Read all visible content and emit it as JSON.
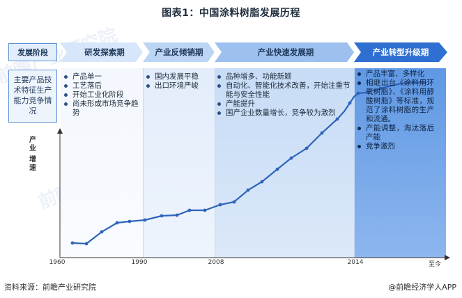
{
  "title": "图表1：中国涂料树脂发展历程",
  "row_labels": {
    "stage": "发展阶段",
    "features": "主要产品技术特征生产能力竞争情况"
  },
  "y_axis_label": [
    "产",
    "业",
    "增",
    "速"
  ],
  "stages": [
    {
      "name": "研发探索期",
      "features": [
        "产品单一",
        "工艺落后",
        "开始工业化阶段",
        "尚未形成市场竞争趋势"
      ]
    },
    {
      "name": "产业反倾销期",
      "features": [
        "国内发展平稳",
        "出口环境严峻"
      ]
    },
    {
      "name": "产业快速发展期",
      "features": [
        "品种增多、功能新颖",
        "自动化、智能化技术改善，开始注重节能与安全性能",
        "产能提升",
        "国产企业数量增长，竞争较为激烈"
      ]
    },
    {
      "name": "产业转型升级期",
      "features": [
        "产品丰富、多样化",
        "相继出台《涂料用环氧树脂》、《涂料用醇酸树脂》等标准，规范了涂料树脂的生产和流通。",
        "产能调整，淘汰落后产能",
        "竞争激烈"
      ]
    }
  ],
  "x_ticks": [
    "1960",
    "1990",
    "2008",
    "2014",
    "至今"
  ],
  "watermark": "前瞻产业研究院",
  "source": "资料来源：前瞻产业研究院",
  "credit": "@前瞻经济学人APP",
  "colors": {
    "arrow_light": "#d7e6fa",
    "arrow_mid": "#a9c8f0",
    "arrow_dark": "#6fa0e6",
    "arrow_strong": "#2f6fd1",
    "curve": "#2f63b8"
  }
}
